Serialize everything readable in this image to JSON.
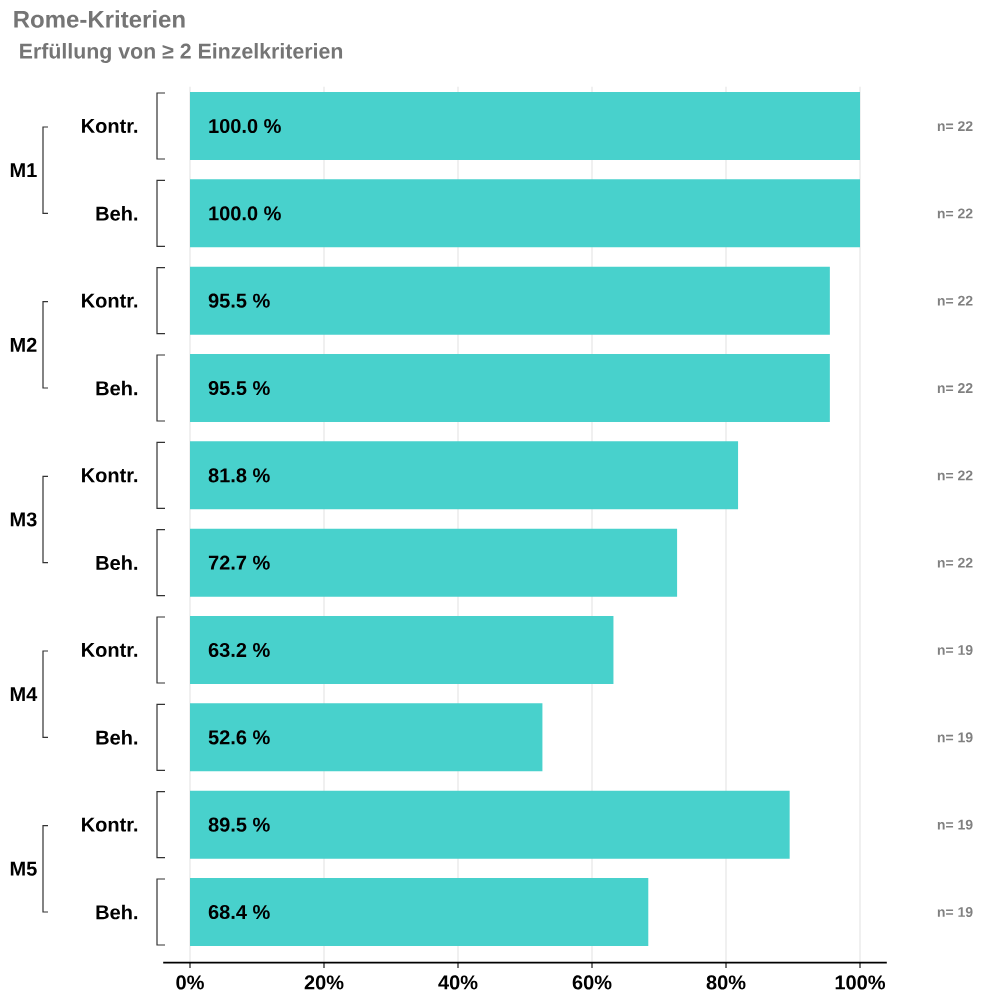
{
  "chart_data": {
    "type": "bar",
    "orientation": "horizontal",
    "title": "Rome-Kriterien",
    "subtitle": "Erfüllung von ≥ 2 Einzelkriterien",
    "categories": [
      "Kontr.",
      "Beh.",
      "Kontr.",
      "Beh.",
      "Kontr.",
      "Beh.",
      "Kontr.",
      "Beh.",
      "Kontr.",
      "Beh."
    ],
    "values": [
      100.0,
      100.0,
      95.5,
      95.5,
      81.8,
      72.7,
      63.2,
      52.6,
      89.5,
      68.4
    ],
    "value_labels": [
      "100.0 %",
      "100.0 %",
      "95.5 %",
      "95.5 %",
      "81.8 %",
      "72.7 %",
      "63.2 %",
      "52.6 %",
      "89.5 %",
      "68.4 %"
    ],
    "color": "#48d1cc",
    "xlim": [
      -4,
      104
    ],
    "xticks": [
      {
        "value": 0,
        "label": "0%"
      },
      {
        "value": 20,
        "label": "20%"
      },
      {
        "value": 40,
        "label": "40%"
      },
      {
        "value": 60,
        "label": "60%"
      },
      {
        "value": 80,
        "label": "80%"
      },
      {
        "value": 100,
        "label": "100%"
      }
    ],
    "grid": "x",
    "annotations": [
      "M1",
      "M2",
      "M3",
      "M4",
      "M5",
      "n= 22",
      "n= 22",
      "n= 22",
      "n= 22",
      "n= 22",
      "n= 22",
      "n= 19",
      "n= 19",
      "n= 19",
      "n= 19"
    ]
  }
}
